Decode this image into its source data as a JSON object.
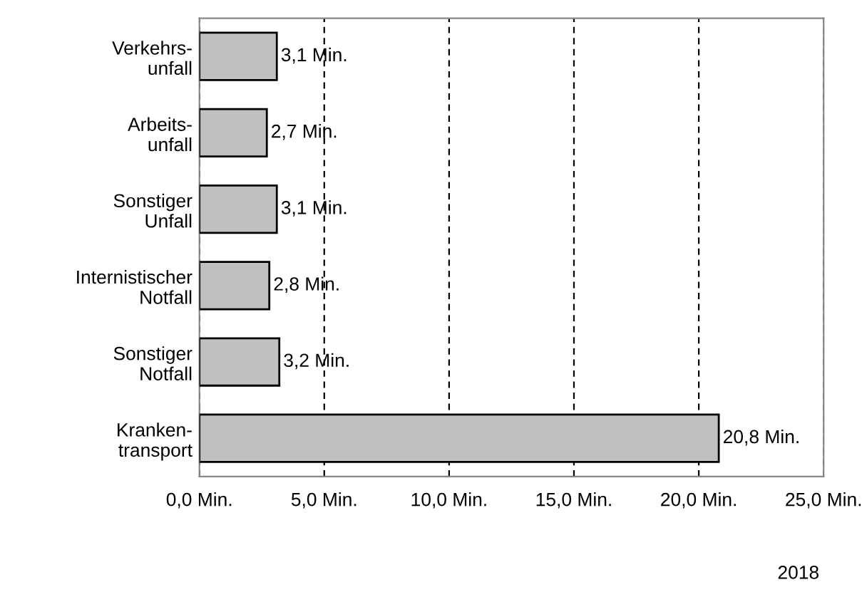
{
  "chart_data": {
    "type": "bar",
    "orientation": "horizontal",
    "categories": [
      "Verkehrs-\nunfall",
      "Arbeits-\nunfall",
      "Sonstiger\nUnfall",
      "Internistischer\nNotfall",
      "Sonstiger\nNotfall",
      "Kranken-\ntransport"
    ],
    "values": [
      3.1,
      2.7,
      3.1,
      2.8,
      3.2,
      20.8
    ],
    "value_labels": [
      "3,1 Min.",
      "2,7 Min.",
      "3,1 Min.",
      "2,8 Min.",
      "3,2 Min.",
      "20,8 Min."
    ],
    "color": "#c0c0c0",
    "xlim": [
      0,
      25
    ],
    "xticks": [
      {
        "value": 0,
        "label": "0,0 Min."
      },
      {
        "value": 5,
        "label": "5,0 Min."
      },
      {
        "value": 10,
        "label": "10,0 Min."
      },
      {
        "value": 15,
        "label": "15,0 Min."
      },
      {
        "value": 20,
        "label": "20,0 Min."
      },
      {
        "value": 25,
        "label": "25,0 Min."
      }
    ],
    "grid": "x",
    "annotations": [
      "2018"
    ]
  }
}
